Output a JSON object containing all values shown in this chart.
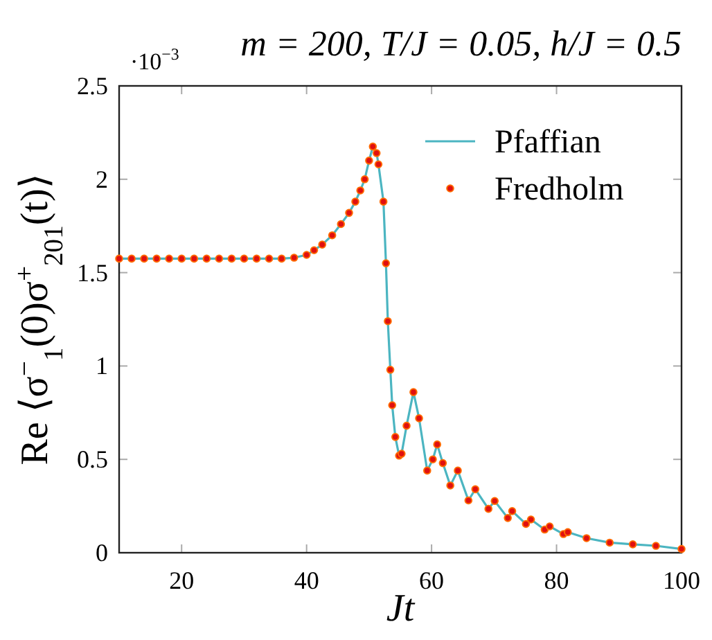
{
  "chart_data": {
    "type": "line",
    "title": "m = 200, T/J = 0.05, h/J = 0.5",
    "xlabel": "Jt",
    "ylabel": "Re ⟨σ$^{−}$$_{1}$(0)σ$^{+}$$_{201}$(t)⟩",
    "annotations": [
      "·10$^{−3}$"
    ],
    "xlim": [
      10,
      100
    ],
    "ylim": [
      0,
      2.5
    ],
    "xticks": [
      20,
      40,
      60,
      80,
      100
    ],
    "yticks": [
      0,
      0.5,
      1,
      1.5,
      2,
      2.5
    ],
    "grid": false,
    "legend": "top right",
    "x": [
      10,
      12,
      14,
      16,
      18,
      20,
      22,
      24,
      26,
      28,
      30,
      32,
      34,
      36,
      38,
      40,
      41.2,
      42.5,
      44.1,
      45.5,
      46.8,
      47.8,
      48.6,
      49.3,
      50,
      50.6,
      51.2,
      51.5,
      52.3,
      52.7,
      53,
      53.4,
      53.7,
      54.2,
      54.8,
      55.2,
      56,
      57.1,
      58,
      59.3,
      60.2,
      60.9,
      61.8,
      63,
      64.2,
      65.9,
      67,
      69.1,
      70.1,
      72.2,
      72.9,
      75.1,
      75.9,
      78.1,
      78.9,
      81.1,
      81.8,
      84.8,
      88.5,
      92.2,
      95.9,
      100
    ],
    "series": [
      {
        "name": "Pfaffian",
        "marker": "none",
        "line_style": "solid",
        "color": "#4bb5c1",
        "values": [
          1.575,
          1.575,
          1.575,
          1.575,
          1.575,
          1.575,
          1.575,
          1.575,
          1.575,
          1.575,
          1.575,
          1.575,
          1.575,
          1.575,
          1.58,
          1.595,
          1.62,
          1.65,
          1.7,
          1.76,
          1.82,
          1.88,
          1.94,
          2.0,
          2.1,
          2.175,
          2.14,
          2.08,
          1.88,
          1.55,
          1.24,
          0.98,
          0.79,
          0.62,
          0.52,
          0.53,
          0.68,
          0.86,
          0.72,
          0.44,
          0.5,
          0.58,
          0.48,
          0.36,
          0.44,
          0.28,
          0.34,
          0.235,
          0.277,
          0.186,
          0.223,
          0.154,
          0.178,
          0.124,
          0.141,
          0.1,
          0.11,
          0.078,
          0.054,
          0.045,
          0.037,
          0.02
        ]
      },
      {
        "name": "Fredholm",
        "type": "scatter",
        "marker": "circle",
        "color": "#ff6a00",
        "values": [
          1.575,
          1.575,
          1.575,
          1.575,
          1.575,
          1.575,
          1.575,
          1.575,
          1.575,
          1.575,
          1.575,
          1.575,
          1.575,
          1.575,
          1.58,
          1.595,
          1.62,
          1.65,
          1.7,
          1.76,
          1.82,
          1.88,
          1.94,
          2.0,
          2.1,
          2.175,
          2.14,
          2.08,
          1.88,
          1.55,
          1.24,
          0.98,
          0.79,
          0.62,
          0.52,
          0.53,
          0.68,
          0.86,
          0.72,
          0.44,
          0.5,
          0.58,
          0.48,
          0.36,
          0.44,
          0.28,
          0.34,
          0.235,
          0.277,
          0.186,
          0.223,
          0.154,
          0.178,
          0.124,
          0.141,
          0.1,
          0.11,
          0.078,
          0.054,
          0.045,
          0.037,
          0.02
        ]
      }
    ]
  }
}
